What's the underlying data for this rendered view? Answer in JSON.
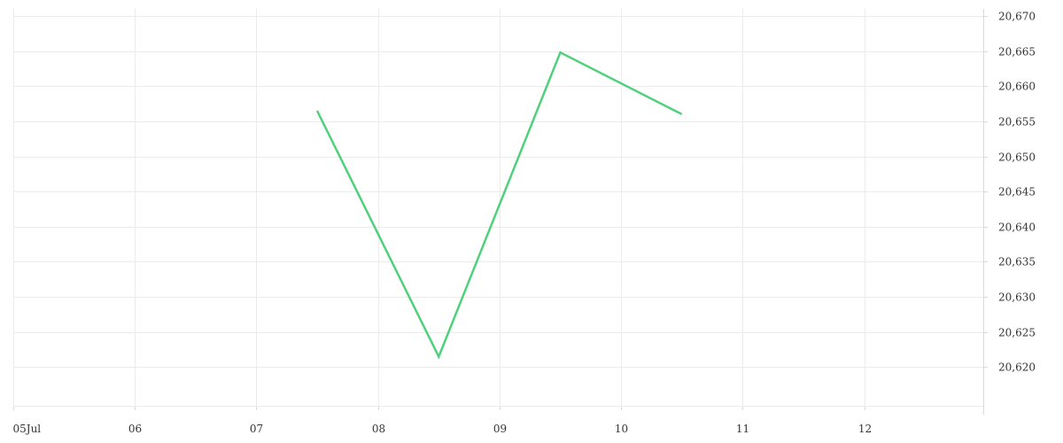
{
  "chart_data": {
    "type": "line",
    "title": "",
    "xlabel": "",
    "ylabel": "",
    "x_ticks": [
      "05Jul",
      "06",
      "07",
      "08",
      "09",
      "10",
      "11",
      "12"
    ],
    "x_tick_values": [
      5,
      6,
      7,
      8,
      9,
      10,
      11,
      12
    ],
    "xlim": [
      5,
      12.98
    ],
    "y_ticks": [
      "20,620",
      "20,625",
      "20,630",
      "20,635",
      "20,640",
      "20,645",
      "20,650",
      "20,655",
      "20,660",
      "20,665",
      "20,670"
    ],
    "y_tick_values": [
      20620,
      20625,
      20630,
      20635,
      20640,
      20645,
      20650,
      20655,
      20660,
      20665,
      20670
    ],
    "ylim": [
      20614.5,
      20671
    ],
    "grid": true,
    "series": [
      {
        "color": "#4fd17c",
        "x": [
          7.5,
          8.5,
          9.5,
          10.5
        ],
        "values": [
          20656.5,
          20621.5,
          20664.8,
          20656
        ]
      }
    ]
  }
}
